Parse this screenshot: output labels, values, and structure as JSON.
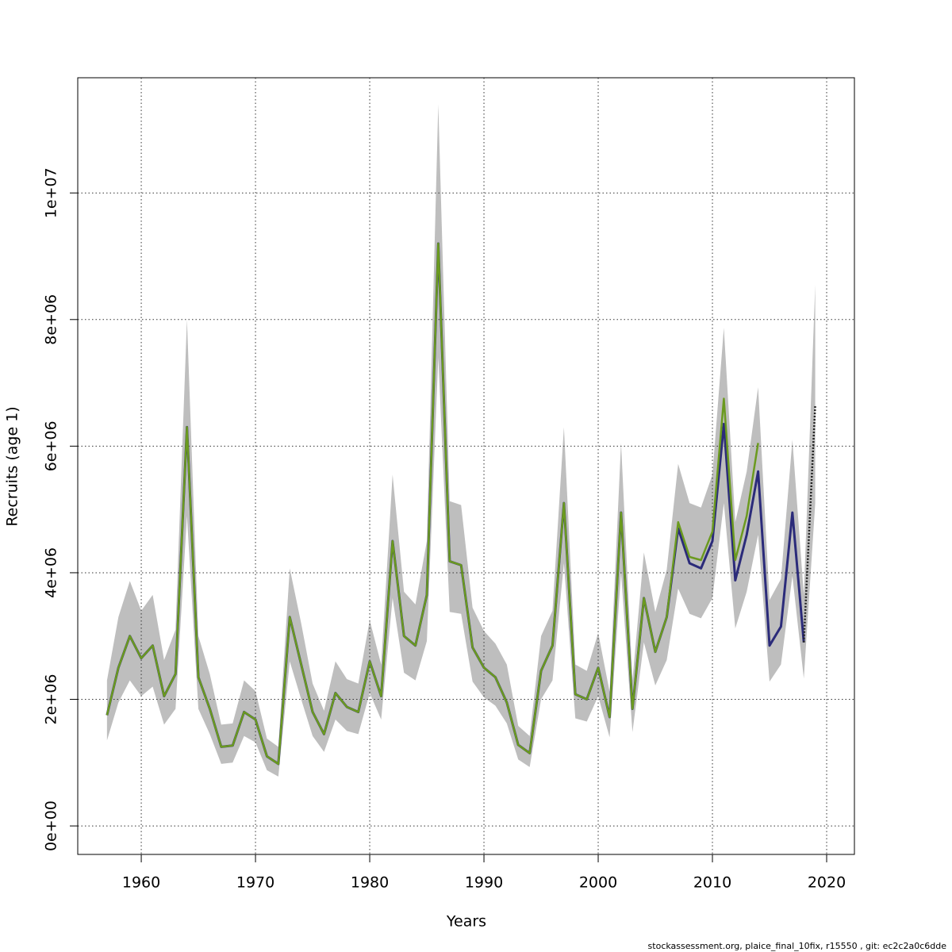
{
  "chart_data": {
    "type": "line",
    "xlabel": "Years",
    "ylabel": "Recruits (age 1)",
    "footnote": "stockassessment.org, plaice_final_10fix, r15550 , git: ec2c2a0c6dde",
    "x": [
      1957,
      1958,
      1959,
      1960,
      1961,
      1962,
      1963,
      1964,
      1965,
      1966,
      1967,
      1968,
      1969,
      1970,
      1971,
      1972,
      1973,
      1974,
      1975,
      1976,
      1977,
      1978,
      1979,
      1980,
      1981,
      1982,
      1983,
      1984,
      1985,
      1986,
      1987,
      1988,
      1989,
      1990,
      1991,
      1992,
      1993,
      1994,
      1995,
      1996,
      1997,
      1998,
      1999,
      2000,
      2001,
      2002,
      2003,
      2004,
      2005,
      2006,
      2007,
      2008,
      2009,
      2010,
      2011,
      2012,
      2013,
      2014,
      2015,
      2016,
      2017,
      2018,
      2019
    ],
    "band_color": "#bebebe",
    "lower": [
      1350000.0,
      1950000.0,
      2300000.0,
      2050000.0,
      2200000.0,
      1600000.0,
      1850000.0,
      4900000.0,
      1850000.0,
      1450000.0,
      980000.0,
      1000000.0,
      1420000.0,
      1320000.0,
      880000.0,
      780000.0,
      2600000.0,
      2000000.0,
      1420000.0,
      1170000.0,
      1680000.0,
      1500000.0,
      1450000.0,
      2100000.0,
      1680000.0,
      3600000.0,
      2420000.0,
      2300000.0,
      2920000.0,
      7400000.0,
      3380000.0,
      3350000.0,
      2280000.0,
      2030000.0,
      1900000.0,
      1620000.0,
      1050000.0,
      930000.0,
      2000000.0,
      2300000.0,
      4150000.0,
      1700000.0,
      1650000.0,
      2050000.0,
      1400000.0,
      4000000.0,
      1480000.0,
      2900000.0,
      2220000.0,
      2620000.0,
      3750000.0,
      3350000.0,
      3280000.0,
      3600000.0,
      5100000.0,
      3120000.0,
      3700000.0,
      4600000.0,
      2280000.0,
      2550000.0,
      3950000.0,
      2330000.0,
      5100000.0
    ],
    "upper": [
      2300000.0,
      3300000.0,
      3870000.0,
      3400000.0,
      3650000.0,
      2620000.0,
      3100000.0,
      8000000.0,
      3000000.0,
      2400000.0,
      1600000.0,
      1620000.0,
      2300000.0,
      2130000.0,
      1380000.0,
      1250000.0,
      4070000.0,
      3200000.0,
      2250000.0,
      1820000.0,
      2600000.0,
      2320000.0,
      2250000.0,
      3250000.0,
      2550000.0,
      5550000.0,
      3700000.0,
      3500000.0,
      4500000.0,
      11400000.0,
      5130000.0,
      5070000.0,
      3450000.0,
      3080000.0,
      2880000.0,
      2550000.0,
      1580000.0,
      1420000.0,
      3000000.0,
      3400000.0,
      6300000.0,
      2550000.0,
      2450000.0,
      3050000.0,
      2120000.0,
      6050000.0,
      2300000.0,
      4320000.0,
      3380000.0,
      4050000.0,
      5720000.0,
      5100000.0,
      5030000.0,
      5550000.0,
      7870000.0,
      4800000.0,
      5600000.0,
      6930000.0,
      3570000.0,
      3900000.0,
      6100000.0,
      3650000.0,
      8550000.0
    ],
    "series": [
      {
        "color": "#2b2b7a",
        "values": [
          1750000.0,
          2500000.0,
          3000000.0,
          2650000.0,
          2850000.0,
          2050000.0,
          2400000.0,
          6300000.0,
          2350000.0,
          1850000.0,
          1250000.0,
          1270000.0,
          1800000.0,
          1680000.0,
          1100000.0,
          980000.0,
          3300000.0,
          2550000.0,
          1800000.0,
          1450000.0,
          2100000.0,
          1880000.0,
          1800000.0,
          2600000.0,
          2050000.0,
          4500000.0,
          3000000.0,
          2850000.0,
          3650000.0,
          9200000.0,
          4180000.0,
          4120000.0,
          2820000.0,
          2500000.0,
          2350000.0,
          1950000.0,
          1280000.0,
          1150000.0,
          2450000.0,
          2850000.0,
          5100000.0,
          2080000.0,
          2000000.0,
          2500000.0,
          1720000.0,
          4950000.0,
          1850000.0,
          3600000.0,
          2750000.0,
          3300000.0,
          4700000.0,
          4150000.0,
          4070000.0,
          4500000.0,
          6350000.0,
          3880000.0,
          4600000.0,
          5600000.0,
          2850000.0,
          3150000.0,
          4950000.0,
          2900000.0,
          null
        ]
      },
      {
        "color": "#6b9a1f",
        "values": [
          1750000.0,
          2500000.0,
          3000000.0,
          2650000.0,
          2850000.0,
          2050000.0,
          2400000.0,
          6300000.0,
          2350000.0,
          1850000.0,
          1250000.0,
          1270000.0,
          1800000.0,
          1680000.0,
          1100000.0,
          980000.0,
          3300000.0,
          2550000.0,
          1800000.0,
          1450000.0,
          2100000.0,
          1880000.0,
          1800000.0,
          2600000.0,
          2050000.0,
          4500000.0,
          3000000.0,
          2850000.0,
          3650000.0,
          9200000.0,
          4180000.0,
          4120000.0,
          2820000.0,
          2500000.0,
          2350000.0,
          1950000.0,
          1280000.0,
          1150000.0,
          2450000.0,
          2850000.0,
          5100000.0,
          2080000.0,
          2000000.0,
          2500000.0,
          1720000.0,
          4950000.0,
          1850000.0,
          3600000.0,
          2750000.0,
          3300000.0,
          4800000.0,
          4250000.0,
          4200000.0,
          4650000.0,
          6750000.0,
          4200000.0,
          4900000.0,
          6050000.0,
          null,
          null,
          null,
          null,
          null
        ]
      },
      {
        "color": "#222222",
        "dashed": true,
        "values": [
          null,
          null,
          null,
          null,
          null,
          null,
          null,
          null,
          null,
          null,
          null,
          null,
          null,
          null,
          null,
          null,
          null,
          null,
          null,
          null,
          null,
          null,
          null,
          null,
          null,
          null,
          null,
          null,
          null,
          null,
          null,
          null,
          null,
          null,
          null,
          null,
          null,
          null,
          null,
          null,
          null,
          null,
          null,
          null,
          null,
          null,
          null,
          null,
          null,
          null,
          null,
          null,
          null,
          null,
          null,
          null,
          null,
          null,
          null,
          null,
          null,
          2900000.0,
          6650000.0
        ]
      }
    ],
    "xlim": [
      1954.44,
      2022.43
    ],
    "ylim": [
      -450000,
      11820000
    ],
    "xticks": [
      1960,
      1970,
      1980,
      1990,
      2000,
      2010,
      2020
    ],
    "yticks": [
      {
        "value": 0,
        "label": "0e+00"
      },
      {
        "value": 2000000,
        "label": "2e+06"
      },
      {
        "value": 4000000,
        "label": "4e+06"
      },
      {
        "value": 6000000,
        "label": "6e+06"
      },
      {
        "value": 8000000,
        "label": "8e+06"
      },
      {
        "value": 10000000,
        "label": "1e+07"
      }
    ],
    "grid": true
  }
}
